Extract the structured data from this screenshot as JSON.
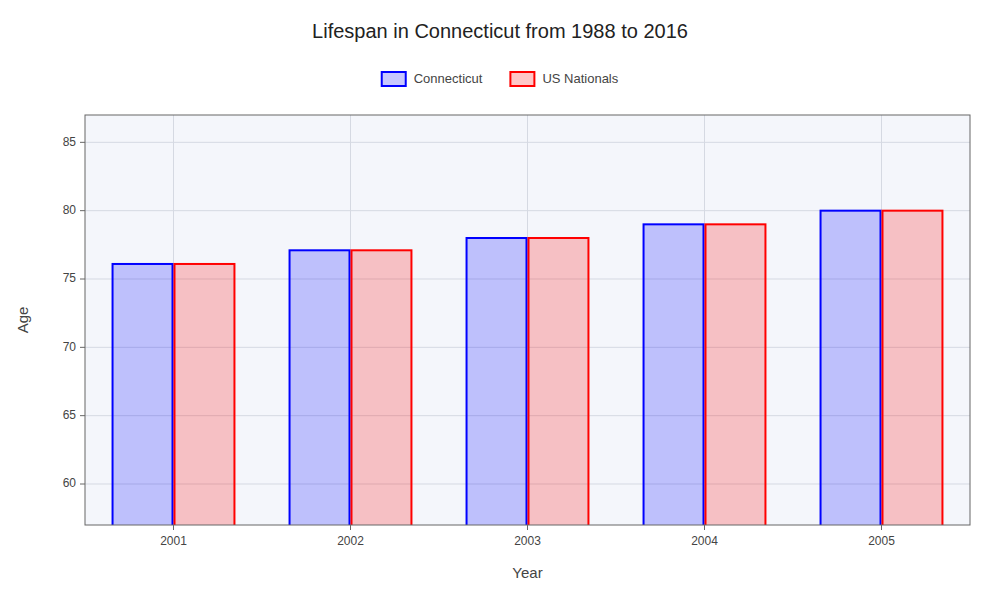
{
  "chart_data": {
    "type": "bar",
    "title": "Lifespan in Connecticut from 1988 to 2016",
    "xlabel": "Year",
    "ylabel": "Age",
    "categories": [
      "2001",
      "2002",
      "2003",
      "2004",
      "2005"
    ],
    "series": [
      {
        "name": "Connecticut",
        "color": "#0000ff",
        "values": [
          76.1,
          77.1,
          78.0,
          79.0,
          80.0
        ]
      },
      {
        "name": "US Nationals",
        "color": "#ff0000",
        "values": [
          76.1,
          77.1,
          78.0,
          79.0,
          80.0
        ]
      }
    ],
    "ylim": [
      57,
      87
    ],
    "yticks": [
      60,
      65,
      70,
      75,
      80,
      85
    ],
    "grid": true,
    "legend": "top"
  }
}
